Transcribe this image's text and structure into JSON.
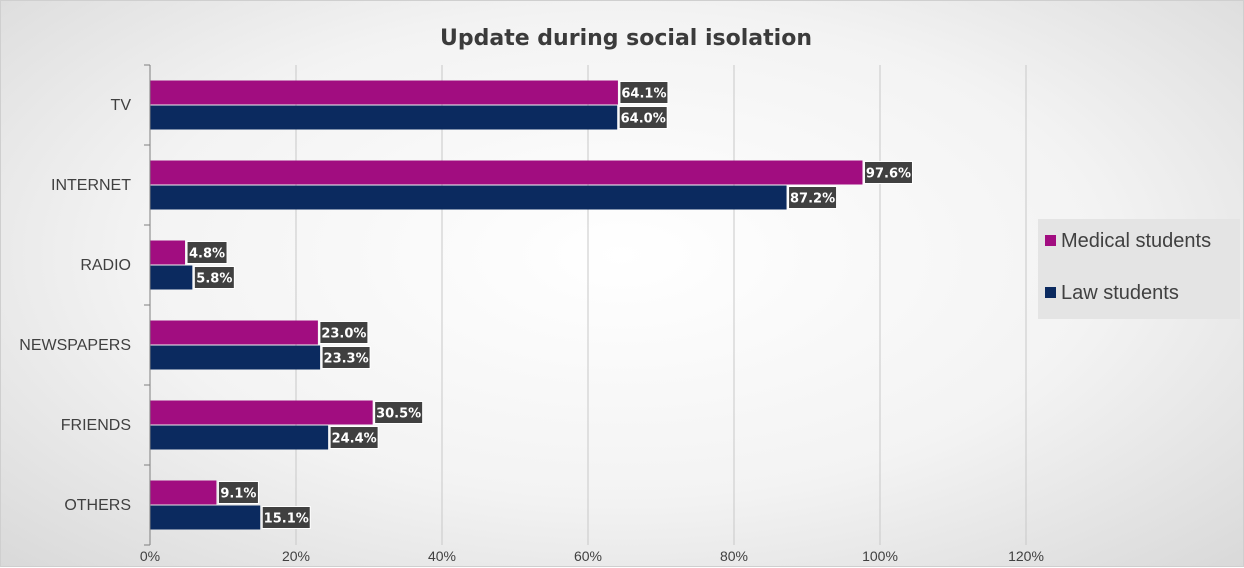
{
  "chart_data": {
    "type": "bar",
    "orientation": "horizontal",
    "title": "Update during social isolation",
    "categories": [
      "TV",
      "INTERNET",
      "RADIO",
      "NEWSPAPERS",
      "FRIENDS",
      "OTHERS"
    ],
    "series": [
      {
        "name": "Medical students",
        "color": "#a10d80",
        "values": [
          64.1,
          97.6,
          4.8,
          23.0,
          30.5,
          9.1
        ],
        "labels": [
          "64.1%",
          "97.6%",
          "4.8%",
          "23.0%",
          "30.5%",
          "9.1%"
        ]
      },
      {
        "name": "Law students",
        "color": "#0b2a5f",
        "values": [
          64.0,
          87.2,
          5.8,
          23.3,
          24.4,
          15.1
        ],
        "labels": [
          "64.0%",
          "87.2%",
          "5.8%",
          "23.3%",
          "24.4%",
          "15.1%"
        ]
      }
    ],
    "xlim": [
      0,
      120
    ],
    "xticks": [
      0,
      20,
      40,
      60,
      80,
      100,
      120
    ],
    "xtick_labels": [
      "0%",
      "20%",
      "40%",
      "60%",
      "80%",
      "100%",
      "120%"
    ],
    "grid": true,
    "legend_position": "right",
    "data_label_color": "#404040"
  }
}
